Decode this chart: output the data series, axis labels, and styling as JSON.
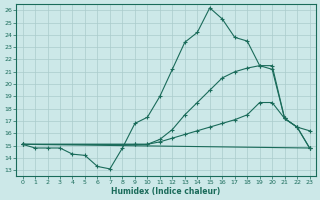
{
  "xlabel": "Humidex (Indice chaleur)",
  "bg_color": "#cce8e8",
  "grid_color": "#aacccc",
  "line_color": "#1a6b5a",
  "xlim": [
    -0.5,
    23.5
  ],
  "ylim": [
    12.5,
    26.5
  ],
  "xticks": [
    0,
    1,
    2,
    3,
    4,
    5,
    6,
    7,
    8,
    9,
    10,
    11,
    12,
    13,
    14,
    15,
    16,
    17,
    18,
    19,
    20,
    21,
    22,
    23
  ],
  "yticks": [
    13,
    14,
    15,
    16,
    17,
    18,
    19,
    20,
    21,
    22,
    23,
    24,
    25,
    26
  ],
  "lines": [
    {
      "x": [
        0,
        1,
        2,
        3,
        4,
        5,
        6,
        7,
        8,
        9,
        10,
        11,
        12,
        13,
        14,
        15,
        16,
        17,
        18,
        19,
        20,
        21,
        22,
        23
      ],
      "y": [
        15.1,
        14.8,
        14.8,
        14.8,
        14.3,
        14.2,
        13.3,
        13.1,
        14.8,
        16.8,
        17.3,
        19.0,
        21.2,
        23.4,
        24.2,
        26.2,
        25.3,
        23.8,
        23.5,
        21.5,
        21.2,
        17.2,
        16.5,
        14.8
      ]
    },
    {
      "x": [
        0,
        9,
        10,
        11,
        12,
        13,
        14,
        15,
        16,
        17,
        18,
        19,
        20,
        21,
        22,
        23
      ],
      "y": [
        15.1,
        15.1,
        15.1,
        15.5,
        16.3,
        17.5,
        18.5,
        19.5,
        20.5,
        21.0,
        21.3,
        21.5,
        21.5,
        17.2,
        16.5,
        16.2
      ]
    },
    {
      "x": [
        0,
        9,
        10,
        11,
        12,
        13,
        14,
        15,
        16,
        17,
        18,
        19,
        20,
        21,
        22,
        23
      ],
      "y": [
        15.1,
        15.1,
        15.1,
        15.3,
        15.6,
        15.9,
        16.2,
        16.5,
        16.8,
        17.1,
        17.5,
        18.5,
        18.5,
        17.2,
        16.5,
        14.8
      ]
    },
    {
      "x": [
        0,
        23
      ],
      "y": [
        15.1,
        14.8
      ]
    }
  ]
}
